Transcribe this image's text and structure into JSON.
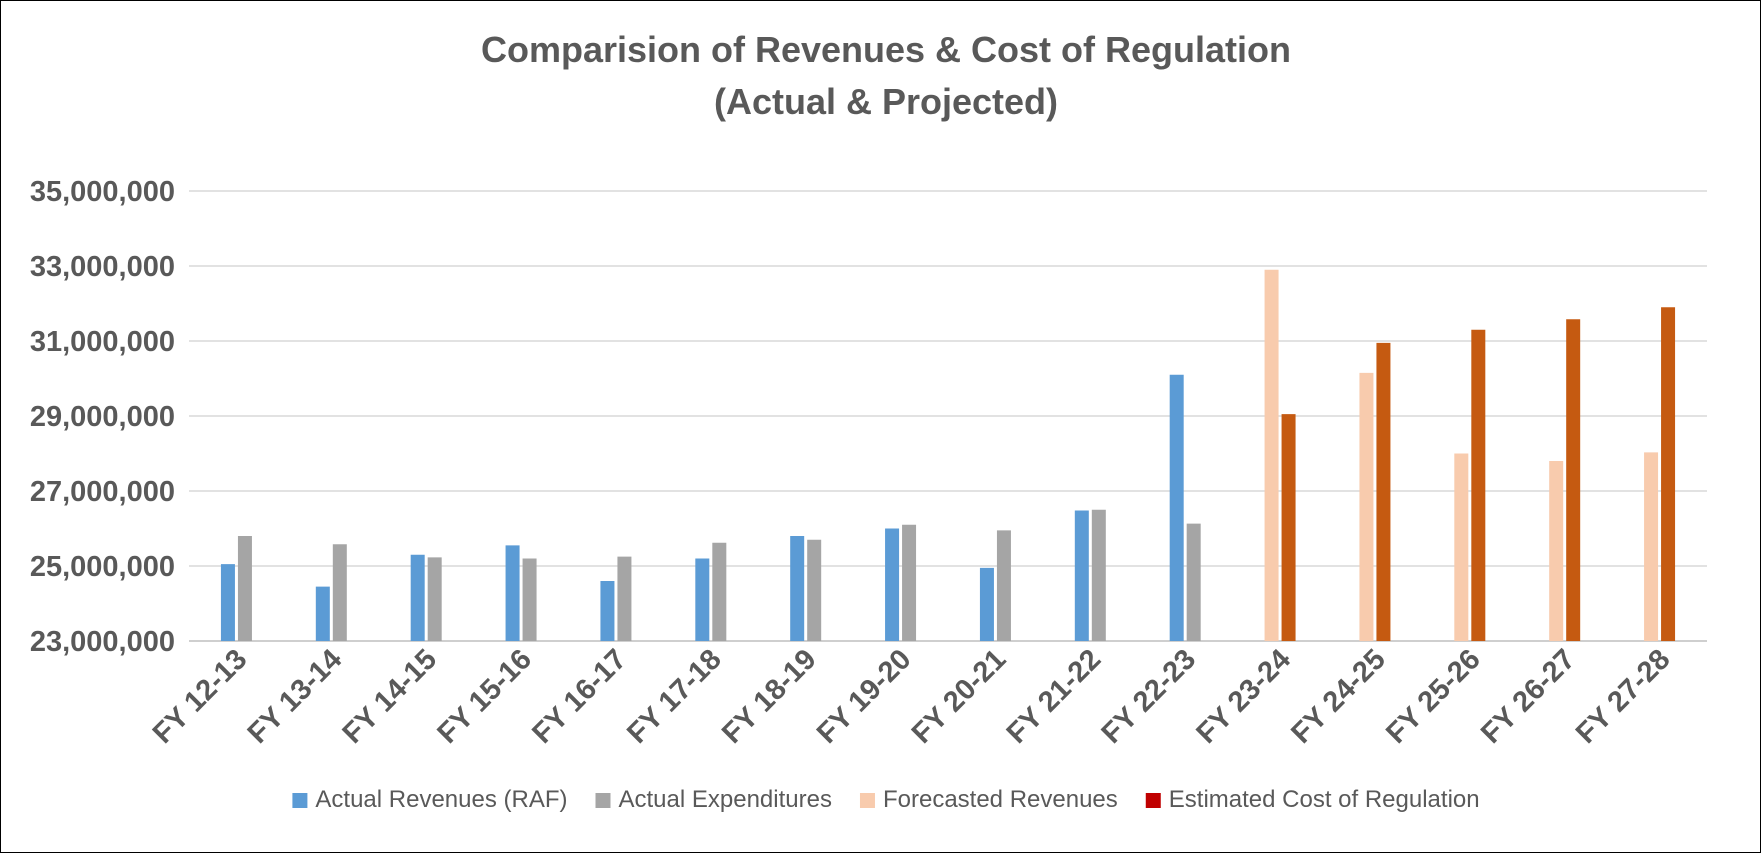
{
  "chart_data": {
    "type": "bar",
    "title_lines": [
      "Comparision of Revenues & Cost of Regulation",
      "(Actual & Projected)"
    ],
    "xlabel": "",
    "ylabel": "",
    "ylim": [
      23000000,
      35000000
    ],
    "y_ticks": [
      23000000,
      25000000,
      27000000,
      29000000,
      31000000,
      33000000,
      35000000
    ],
    "y_tick_labels": [
      "23,000,000",
      "25,000,000",
      "27,000,000",
      "29,000,000",
      "31,000,000",
      "33,000,000",
      "35,000,000"
    ],
    "grid": true,
    "legend_position": "bottom",
    "categories": [
      "FY 12-13",
      "FY 13-14",
      "FY 14-15",
      "FY 15-16",
      "FY 16-17",
      "FY 17-18",
      "FY  18-19",
      "FY 19-20",
      "FY 20-21",
      "FY 21-22",
      "FY 22-23",
      "FY 23-24",
      "FY 24-25",
      "FY 25-26",
      "FY 26-27",
      "FY 27-28"
    ],
    "series": [
      {
        "name": "Actual Revenues (RAF)",
        "color": "#5b9bd5",
        "values": [
          25050000,
          24450000,
          25300000,
          25550000,
          24600000,
          25200000,
          25800000,
          26000000,
          24950000,
          26480000,
          30100000,
          null,
          null,
          null,
          null,
          null
        ]
      },
      {
        "name": "Actual Expenditures",
        "color": "#a5a5a5",
        "values": [
          25800000,
          25580000,
          25230000,
          25200000,
          25250000,
          25620000,
          25700000,
          26100000,
          25950000,
          26500000,
          26130000,
          null,
          null,
          null,
          null,
          null
        ]
      },
      {
        "name": "Forecasted Revenues",
        "color": "#f8cbad",
        "values": [
          null,
          null,
          null,
          null,
          null,
          null,
          null,
          null,
          null,
          null,
          null,
          32900000,
          30150000,
          28000000,
          27800000,
          28030000
        ]
      },
      {
        "name": "Estimated Cost of Regulation",
        "color": "#c55a11",
        "legend_color": "#c00000",
        "values": [
          null,
          null,
          null,
          null,
          null,
          null,
          null,
          null,
          null,
          null,
          null,
          29050000,
          30950000,
          31300000,
          31580000,
          31900000
        ]
      }
    ]
  }
}
